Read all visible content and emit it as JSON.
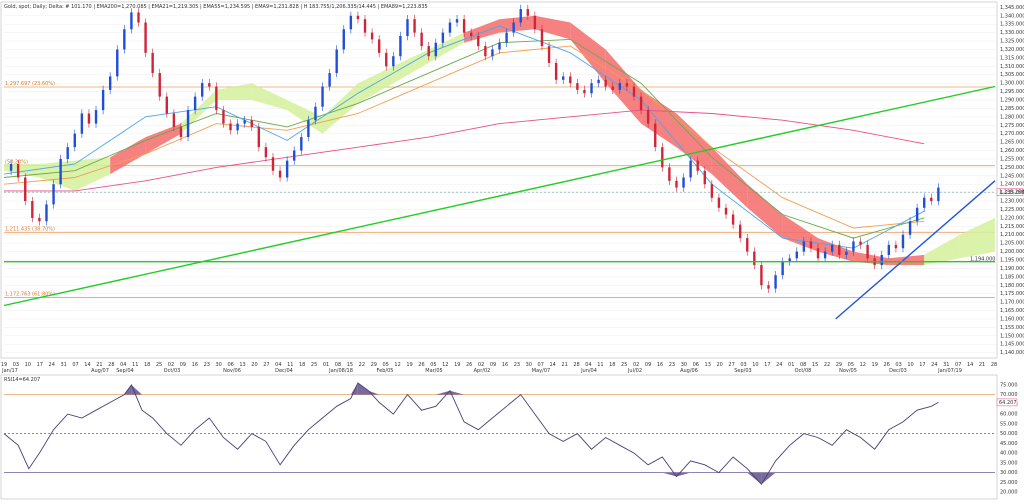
{
  "title": "Gold, spot; Daily; Delta: # 101.170 | EMA200=1,270.085 | EMA21=1,219.305 | EMA55=1,234.595 | EMA9=1,231.828 | H 183.755/1,206.335/14.445 | EMA89=1,223.835",
  "price_axis": {
    "ticks": [
      "1,345.000",
      "1,340.000",
      "1,335.000",
      "1,330.000",
      "1,325.000",
      "1,320.000",
      "1,315.000",
      "1,310.000",
      "1,305.000",
      "1,300.000",
      "1,295.000",
      "1,290.000",
      "1,285.000",
      "1,280.000",
      "1,275.000",
      "1,270.000",
      "1,265.000",
      "1,260.000",
      "1,255.000",
      "1,250.000",
      "1,245.000",
      "1,240.000",
      "1,235.000",
      "1,230.000",
      "1,225.000",
      "1,220.000",
      "1,215.000",
      "1,210.000",
      "1,205.000",
      "1,200.000",
      "1,195.000",
      "1,190.000",
      "1,185.000",
      "1,180.000",
      "1,175.000",
      "1,170.000",
      "1,165.000",
      "1,160.000",
      "1,155.000",
      "1,150.000",
      "1,145.000",
      "1,140.000"
    ],
    "ylim": [
      1138,
      1347
    ],
    "last_price_label": "1,235.258",
    "support_label": "1,194.000"
  },
  "time_axis": {
    "days": [
      "19",
      "03",
      "10",
      "17",
      "24",
      "31",
      "07",
      "14",
      "21",
      "28",
      "04",
      "11",
      "18",
      "25",
      "02",
      "09",
      "16",
      "23",
      "30",
      "06",
      "13",
      "20",
      "27",
      "04",
      "11",
      "18",
      "25",
      "01",
      "08",
      "15",
      "22",
      "29",
      "05",
      "12",
      "19",
      "26",
      "05",
      "12",
      "19",
      "26",
      "02",
      "09",
      "16",
      "23",
      "30",
      "07",
      "14",
      "21",
      "28",
      "04",
      "11",
      "18",
      "25",
      "02",
      "09",
      "16",
      "23",
      "30",
      "06",
      "13",
      "20",
      "27",
      "03",
      "10",
      "17",
      "24",
      "01",
      "08",
      "15",
      "22",
      "29",
      "05",
      "12",
      "19",
      "26",
      "03",
      "10",
      "17",
      "24",
      "31",
      "07",
      "14",
      "21",
      "28"
    ],
    "months": [
      "Jan/17",
      "Aug/07",
      "Sep/04",
      "Oct/03",
      "Nov/06",
      "Dec/04",
      "Jan/08/18",
      "Feb/05",
      "Mar/05",
      "Apr/02",
      "May/07",
      "Jun/04",
      "Jul/02",
      "Aug/06",
      "Sep/03",
      "Oct/08",
      "Nov/05",
      "Dec/03",
      "Jan/07/19"
    ]
  },
  "fib_levels": [
    {
      "label": "1,297.697 (23.60%)",
      "value": 1297.697
    },
    {
      "label": "(50.20%)",
      "value": 1251.0
    },
    {
      "label": "1,211.435 (38.70%)",
      "value": 1211.435
    },
    {
      "label": "1,172.763 (61.80%)",
      "value": 1172.763
    }
  ],
  "rsi": {
    "title": "RSI14=64.207",
    "value_label": "64.207",
    "ticks": [
      "75.000",
      "70.000",
      "65.000",
      "60.000",
      "55.000",
      "50.000",
      "45.000",
      "40.000",
      "35.000",
      "30.000",
      "25.000",
      "20.000"
    ],
    "ylim": [
      18,
      78
    ]
  },
  "colors": {
    "candle_up": "#1f4fd6",
    "candle_down": "#d0243a",
    "cloud_bull": "#d4f09a",
    "cloud_bear": "#f56b6b",
    "ema_pink": "#e64f8a",
    "ema_orange": "#f0a050",
    "ema_green": "#6aa84f",
    "ema_blue": "#4aa8e8",
    "trend_green": "#22cc22",
    "trend_blue": "#2255dd",
    "fib": "#e8a060",
    "rsi_line": "#4a3f7a",
    "rsi_fill": "#7a6a9a"
  },
  "chart_data": {
    "type": "line",
    "price": [
      [
        0,
        1248
      ],
      [
        4,
        1252
      ],
      [
        8,
        1244
      ],
      [
        12,
        1230
      ],
      [
        16,
        1220
      ],
      [
        20,
        1218
      ],
      [
        24,
        1228
      ],
      [
        28,
        1240
      ],
      [
        32,
        1255
      ],
      [
        36,
        1262
      ],
      [
        40,
        1270
      ],
      [
        44,
        1282
      ],
      [
        48,
        1276
      ],
      [
        52,
        1284
      ],
      [
        56,
        1296
      ],
      [
        60,
        1304
      ],
      [
        64,
        1320
      ],
      [
        68,
        1332
      ],
      [
        72,
        1342
      ],
      [
        76,
        1336
      ],
      [
        80,
        1318
      ],
      [
        84,
        1306
      ],
      [
        88,
        1292
      ],
      [
        92,
        1282
      ],
      [
        96,
        1274
      ],
      [
        100,
        1268
      ],
      [
        104,
        1284
      ],
      [
        108,
        1292
      ],
      [
        112,
        1300
      ],
      [
        116,
        1298
      ],
      [
        120,
        1284
      ],
      [
        124,
        1276
      ],
      [
        128,
        1272
      ],
      [
        132,
        1276
      ],
      [
        136,
        1278
      ],
      [
        140,
        1274
      ],
      [
        144,
        1262
      ],
      [
        148,
        1256
      ],
      [
        152,
        1248
      ],
      [
        156,
        1244
      ],
      [
        160,
        1254
      ],
      [
        164,
        1260
      ],
      [
        168,
        1268
      ],
      [
        172,
        1278
      ],
      [
        176,
        1286
      ],
      [
        180,
        1298
      ],
      [
        184,
        1306
      ],
      [
        188,
        1320
      ],
      [
        192,
        1332
      ],
      [
        196,
        1340
      ],
      [
        200,
        1338
      ],
      [
        204,
        1330
      ],
      [
        208,
        1326
      ],
      [
        212,
        1318
      ],
      [
        216,
        1310
      ],
      [
        220,
        1316
      ],
      [
        224,
        1328
      ],
      [
        228,
        1338
      ],
      [
        232,
        1330
      ],
      [
        236,
        1322
      ],
      [
        240,
        1316
      ],
      [
        244,
        1324
      ],
      [
        248,
        1330
      ],
      [
        252,
        1336
      ],
      [
        256,
        1338
      ],
      [
        260,
        1330
      ],
      [
        264,
        1328
      ],
      [
        268,
        1322
      ],
      [
        272,
        1316
      ],
      [
        276,
        1320
      ],
      [
        280,
        1324
      ],
      [
        284,
        1330
      ],
      [
        288,
        1336
      ],
      [
        292,
        1344
      ],
      [
        296,
        1340
      ],
      [
        300,
        1332
      ],
      [
        304,
        1322
      ],
      [
        308,
        1312
      ],
      [
        312,
        1302
      ],
      [
        316,
        1304
      ],
      [
        320,
        1300
      ],
      [
        324,
        1296
      ],
      [
        328,
        1294
      ],
      [
        332,
        1300
      ],
      [
        336,
        1302
      ],
      [
        340,
        1298
      ],
      [
        344,
        1296
      ],
      [
        348,
        1300
      ],
      [
        352,
        1298
      ],
      [
        356,
        1292
      ],
      [
        360,
        1284
      ],
      [
        364,
        1276
      ],
      [
        368,
        1262
      ],
      [
        372,
        1250
      ],
      [
        376,
        1242
      ],
      [
        380,
        1238
      ],
      [
        384,
        1244
      ],
      [
        388,
        1254
      ],
      [
        392,
        1248
      ],
      [
        396,
        1240
      ],
      [
        400,
        1232
      ],
      [
        404,
        1226
      ],
      [
        408,
        1222
      ],
      [
        412,
        1216
      ],
      [
        416,
        1208
      ],
      [
        420,
        1200
      ],
      [
        424,
        1192
      ],
      [
        428,
        1180
      ],
      [
        432,
        1178
      ],
      [
        436,
        1186
      ],
      [
        440,
        1194
      ],
      [
        444,
        1196
      ],
      [
        448,
        1200
      ],
      [
        452,
        1206
      ],
      [
        456,
        1202
      ],
      [
        460,
        1196
      ],
      [
        464,
        1200
      ],
      [
        468,
        1204
      ],
      [
        472,
        1198
      ],
      [
        476,
        1200
      ],
      [
        480,
        1206
      ],
      [
        484,
        1204
      ],
      [
        488,
        1196
      ],
      [
        492,
        1192
      ],
      [
        496,
        1198
      ],
      [
        500,
        1204
      ],
      [
        504,
        1202
      ],
      [
        508,
        1210
      ],
      [
        512,
        1218
      ],
      [
        516,
        1226
      ],
      [
        520,
        1232
      ],
      [
        524,
        1230
      ],
      [
        528,
        1238
      ]
    ],
    "ema_pink": [
      [
        0,
        1236
      ],
      [
        40,
        1236
      ],
      [
        80,
        1242
      ],
      [
        120,
        1250
      ],
      [
        160,
        1256
      ],
      [
        200,
        1262
      ],
      [
        240,
        1268
      ],
      [
        280,
        1276
      ],
      [
        320,
        1280
      ],
      [
        360,
        1284
      ],
      [
        400,
        1282
      ],
      [
        440,
        1278
      ],
      [
        480,
        1272
      ],
      [
        520,
        1264
      ]
    ],
    "ema_orange": [
      [
        0,
        1240
      ],
      [
        40,
        1244
      ],
      [
        80,
        1258
      ],
      [
        120,
        1276
      ],
      [
        160,
        1272
      ],
      [
        200,
        1282
      ],
      [
        240,
        1300
      ],
      [
        280,
        1318
      ],
      [
        320,
        1322
      ],
      [
        360,
        1296
      ],
      [
        400,
        1262
      ],
      [
        440,
        1232
      ],
      [
        480,
        1214
      ],
      [
        520,
        1218
      ]
    ],
    "ema_green": [
      [
        0,
        1244
      ],
      [
        40,
        1248
      ],
      [
        80,
        1266
      ],
      [
        120,
        1282
      ],
      [
        160,
        1274
      ],
      [
        200,
        1288
      ],
      [
        240,
        1306
      ],
      [
        280,
        1324
      ],
      [
        320,
        1326
      ],
      [
        360,
        1300
      ],
      [
        400,
        1256
      ],
      [
        440,
        1222
      ],
      [
        480,
        1208
      ],
      [
        520,
        1220
      ]
    ],
    "ema_blue": [
      [
        0,
        1246
      ],
      [
        40,
        1252
      ],
      [
        80,
        1280
      ],
      [
        120,
        1286
      ],
      [
        160,
        1266
      ],
      [
        200,
        1294
      ],
      [
        240,
        1318
      ],
      [
        280,
        1334
      ],
      [
        320,
        1318
      ],
      [
        360,
        1290
      ],
      [
        400,
        1240
      ],
      [
        440,
        1208
      ],
      [
        480,
        1202
      ],
      [
        520,
        1224
      ]
    ],
    "cloud_top": [
      [
        0,
        1252
      ],
      [
        20,
        1252
      ],
      [
        40,
        1254
      ],
      [
        60,
        1256
      ],
      [
        80,
        1268
      ],
      [
        100,
        1276
      ],
      [
        120,
        1296
      ],
      [
        140,
        1300
      ],
      [
        160,
        1290
      ],
      [
        180,
        1280
      ],
      [
        200,
        1300
      ],
      [
        220,
        1310
      ],
      [
        240,
        1320
      ],
      [
        260,
        1330
      ],
      [
        280,
        1338
      ],
      [
        300,
        1340
      ],
      [
        320,
        1336
      ],
      [
        340,
        1320
      ],
      [
        360,
        1296
      ],
      [
        380,
        1282
      ],
      [
        400,
        1262
      ],
      [
        420,
        1240
      ],
      [
        440,
        1222
      ],
      [
        460,
        1208
      ],
      [
        480,
        1200
      ],
      [
        500,
        1196
      ],
      [
        520,
        1198
      ],
      [
        540,
        1210
      ],
      [
        560,
        1220
      ]
    ],
    "cloud_bottom": [
      [
        0,
        1248
      ],
      [
        20,
        1244
      ],
      [
        40,
        1236
      ],
      [
        60,
        1246
      ],
      [
        80,
        1258
      ],
      [
        100,
        1270
      ],
      [
        120,
        1290
      ],
      [
        140,
        1290
      ],
      [
        160,
        1284
      ],
      [
        180,
        1270
      ],
      [
        200,
        1288
      ],
      [
        220,
        1300
      ],
      [
        240,
        1312
      ],
      [
        260,
        1324
      ],
      [
        280,
        1330
      ],
      [
        300,
        1332
      ],
      [
        320,
        1326
      ],
      [
        340,
        1300
      ],
      [
        360,
        1276
      ],
      [
        380,
        1262
      ],
      [
        400,
        1246
      ],
      [
        420,
        1226
      ],
      [
        440,
        1208
      ],
      [
        460,
        1200
      ],
      [
        480,
        1194
      ],
      [
        500,
        1192
      ],
      [
        520,
        1192
      ],
      [
        540,
        1196
      ],
      [
        560,
        1200
      ]
    ],
    "trend_green": [
      [
        0,
        1168
      ],
      [
        560,
        1298
      ]
    ],
    "trend_blue": [
      [
        470,
        1160
      ],
      [
        560,
        1242
      ]
    ],
    "support_line": 1194,
    "last_price": 1235.258,
    "rsi_values": [
      [
        0,
        50
      ],
      [
        8,
        44
      ],
      [
        14,
        32
      ],
      [
        20,
        40
      ],
      [
        28,
        52
      ],
      [
        36,
        60
      ],
      [
        44,
        58
      ],
      [
        52,
        62
      ],
      [
        60,
        66
      ],
      [
        68,
        70
      ],
      [
        72,
        75
      ],
      [
        78,
        62
      ],
      [
        84,
        58
      ],
      [
        92,
        50
      ],
      [
        100,
        44
      ],
      [
        108,
        52
      ],
      [
        116,
        58
      ],
      [
        124,
        48
      ],
      [
        132,
        42
      ],
      [
        140,
        50
      ],
      [
        148,
        46
      ],
      [
        156,
        34
      ],
      [
        164,
        44
      ],
      [
        172,
        52
      ],
      [
        180,
        58
      ],
      [
        188,
        64
      ],
      [
        196,
        68
      ],
      [
        200,
        76
      ],
      [
        206,
        72
      ],
      [
        212,
        66
      ],
      [
        220,
        60
      ],
      [
        228,
        70
      ],
      [
        236,
        62
      ],
      [
        244,
        64
      ],
      [
        252,
        72
      ],
      [
        260,
        56
      ],
      [
        268,
        52
      ],
      [
        276,
        58
      ],
      [
        284,
        64
      ],
      [
        292,
        70
      ],
      [
        300,
        60
      ],
      [
        308,
        50
      ],
      [
        316,
        46
      ],
      [
        324,
        50
      ],
      [
        332,
        42
      ],
      [
        340,
        48
      ],
      [
        348,
        44
      ],
      [
        356,
        40
      ],
      [
        364,
        34
      ],
      [
        372,
        38
      ],
      [
        380,
        28
      ],
      [
        388,
        36
      ],
      [
        396,
        34
      ],
      [
        404,
        30
      ],
      [
        412,
        38
      ],
      [
        420,
        32
      ],
      [
        428,
        24
      ],
      [
        436,
        36
      ],
      [
        444,
        44
      ],
      [
        452,
        50
      ],
      [
        460,
        48
      ],
      [
        468,
        44
      ],
      [
        476,
        52
      ],
      [
        484,
        48
      ],
      [
        492,
        42
      ],
      [
        500,
        52
      ],
      [
        508,
        56
      ],
      [
        516,
        62
      ],
      [
        524,
        64
      ],
      [
        528,
        66
      ]
    ]
  }
}
